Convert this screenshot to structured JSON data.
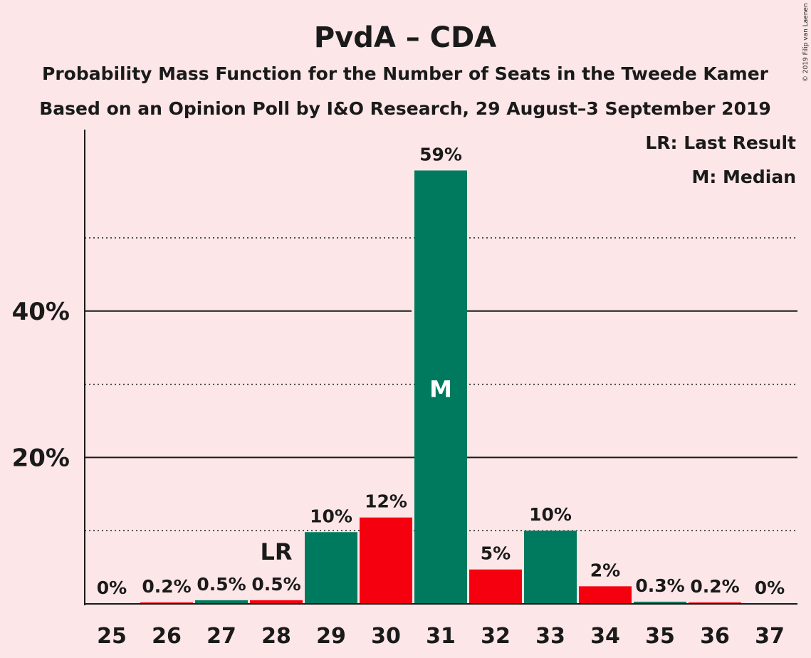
{
  "copyright": "© 2019 Filip van Laenen",
  "legend": {
    "last_result": "LR: Last Result",
    "median": "M: Median"
  },
  "markers": {
    "last_result_label": "LR",
    "last_result_seat": 28,
    "median_label": "M",
    "median_seat": 31
  },
  "colors": {
    "background": "#fce6e7",
    "green": "#007a5e",
    "red": "#f5000f",
    "text": "#1a1a1a"
  },
  "chart_data": {
    "type": "bar",
    "title": "PvdA – CDA",
    "subtitle": "Probability Mass Function for the Number of Seats in the Tweede Kamer",
    "subtitle2": "Based on an Opinion Poll by I&O Research, 29 August–3 September 2019",
    "xlabel": "",
    "ylabel": "",
    "ylim": [
      0,
      65
    ],
    "yticks_solid": [
      20,
      40
    ],
    "ytick_labels": [
      "20%",
      "40%"
    ],
    "ygrid_dotted": [
      10,
      30,
      50
    ],
    "categories": [
      "25",
      "26",
      "27",
      "28",
      "29",
      "30",
      "31",
      "32",
      "33",
      "34",
      "35",
      "36",
      "37"
    ],
    "values": [
      0,
      0.2,
      0.5,
      0.5,
      9.8,
      11.8,
      59.2,
      4.7,
      10.0,
      2.4,
      0.3,
      0.2,
      0
    ],
    "labels": [
      "0%",
      "0.2%",
      "0.5%",
      "0.5%",
      "10%",
      "12%",
      "59%",
      "5%",
      "10%",
      "2%",
      "0.3%",
      "0.2%",
      "0%"
    ],
    "bar_colors": [
      "green",
      "red",
      "green",
      "red",
      "green",
      "red",
      "green",
      "red",
      "green",
      "red",
      "green",
      "red",
      "green"
    ]
  }
}
